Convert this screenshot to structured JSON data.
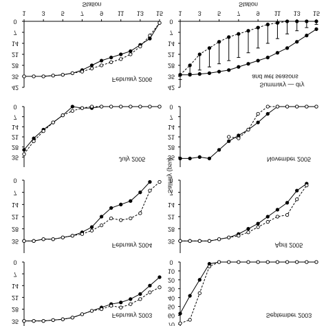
{
  "chart_data": [
    {
      "type": "line",
      "title": "February 2006",
      "xlabel": "Station",
      "x": [
        1,
        2,
        3,
        4,
        5,
        6,
        7,
        8,
        9,
        10,
        11,
        12,
        13,
        14,
        15
      ],
      "xticks": [
        1,
        3,
        5,
        7,
        9,
        11,
        13,
        15
      ],
      "ylim": [
        0,
        42
      ],
      "yticks": [
        0,
        7,
        14,
        21,
        28,
        35,
        42
      ],
      "series": [
        {
          "color": "#000000",
          "style": "solid",
          "marker": "filled",
          "values": [
            35,
            35,
            35,
            34.5,
            34,
            33,
            31,
            28,
            25,
            23,
            21,
            19,
            15,
            11,
            1
          ]
        },
        {
          "color": "#000000",
          "style": "dashed",
          "marker": "open",
          "values": [
            35,
            35,
            35,
            34.5,
            34,
            33,
            32,
            30,
            28,
            26,
            24,
            21,
            16,
            9,
            1
          ]
        }
      ]
    },
    {
      "type": "line",
      "title": "Summary — dry",
      "subtitle": "and wet seasons",
      "xlabel": "Station",
      "x": [
        1,
        2,
        3,
        4,
        5,
        6,
        7,
        8,
        9,
        10,
        11,
        12,
        13,
        14,
        15
      ],
      "xticks": [
        1,
        3,
        5,
        7,
        9,
        11,
        13,
        15
      ],
      "ylim": [
        0,
        42
      ],
      "yticks": [
        0,
        7,
        14,
        21,
        28,
        35,
        42
      ],
      "series": [
        {
          "color": "#000000",
          "style": "solid",
          "marker": "filled",
          "values": [
            34,
            34,
            33.5,
            33,
            32,
            31,
            29,
            27,
            25,
            23,
            20,
            17,
            13,
            9,
            5
          ]
        },
        {
          "color": "#000000",
          "style": "dashed",
          "marker": "filled",
          "values": [
            34,
            28,
            21,
            17,
            13,
            10,
            8,
            6,
            4,
            2,
            1,
            0,
            0,
            0,
            0
          ],
          "errors": [
            3,
            5,
            10,
            12,
            14,
            15,
            15,
            14,
            13,
            12,
            10,
            8,
            6,
            4,
            2
          ]
        }
      ]
    },
    {
      "type": "line",
      "title": "July 2005",
      "x": [
        1,
        2,
        3,
        4,
        5,
        6,
        7,
        8,
        9,
        10,
        11,
        12,
        13,
        14,
        15
      ],
      "ylim": [
        0,
        42
      ],
      "yticks": [
        0,
        7,
        14,
        21,
        28,
        35
      ],
      "series": [
        {
          "color": "#000000",
          "style": "solid",
          "marker": "filled",
          "values": [
            30,
            22,
            16,
            11,
            6,
            0,
            1,
            1,
            0,
            0,
            0,
            0,
            0,
            0,
            0
          ]
        },
        {
          "color": "#000000",
          "style": "dashed",
          "marker": "open",
          "values": [
            33,
            24,
            17,
            11,
            6,
            3,
            1,
            0,
            0,
            0,
            0,
            0,
            0,
            0,
            0
          ]
        }
      ]
    },
    {
      "type": "line",
      "title": "November 2005",
      "x": [
        1,
        2,
        3,
        4,
        5,
        6,
        7,
        8,
        9,
        10,
        11,
        12,
        13,
        14,
        15
      ],
      "ylim": [
        0,
        42
      ],
      "yticks": [
        0,
        7,
        14,
        21,
        28,
        35
      ],
      "series": [
        {
          "color": "#000000",
          "style": "solid",
          "marker": "filled",
          "values": [
            36,
            36,
            35,
            36,
            30,
            24,
            20,
            16,
            11,
            5,
            0,
            0,
            0,
            0,
            0
          ]
        },
        {
          "color": "#000000",
          "style": "dashed",
          "marker": "open",
          "values": [
            null,
            null,
            null,
            null,
            null,
            21,
            22,
            16,
            5,
            0,
            0,
            0,
            0,
            0,
            0
          ]
        }
      ]
    },
    {
      "type": "line",
      "title": "February 2004",
      "ylabel": "Salinity (psu)",
      "x": [
        1,
        2,
        3,
        4,
        5,
        6,
        7,
        8,
        9,
        10,
        11,
        12,
        13,
        14,
        15
      ],
      "ylim": [
        0,
        42
      ],
      "yticks": [
        0,
        7,
        14,
        21,
        28,
        35
      ],
      "series": [
        {
          "color": "#000000",
          "style": "solid",
          "marker": "filled",
          "values": [
            35,
            35,
            34,
            34,
            33,
            32,
            30,
            27,
            21,
            16,
            14,
            12,
            7,
            1,
            null
          ]
        },
        {
          "color": "#000000",
          "style": "dashed",
          "marker": "open",
          "values": [
            35,
            35,
            34,
            34,
            33,
            32,
            31,
            29,
            26,
            22,
            23,
            22,
            19,
            6,
            1
          ]
        }
      ]
    },
    {
      "type": "line",
      "title": "April 2005",
      "x": [
        1,
        2,
        3,
        4,
        5,
        6,
        7,
        8,
        9,
        10,
        11,
        12,
        13,
        14,
        15
      ],
      "ylim": [
        0,
        42
      ],
      "yticks": [
        0,
        7,
        14,
        21,
        28,
        35
      ],
      "series": [
        {
          "color": "#000000",
          "style": "solid",
          "marker": "filled",
          "values": [
            35,
            35,
            35,
            35,
            34,
            33,
            31,
            28,
            25,
            21,
            17,
            13,
            6,
            2,
            null
          ]
        },
        {
          "color": "#000000",
          "style": "dashed",
          "marker": "open",
          "values": [
            35,
            35,
            35,
            35,
            34,
            33,
            32,
            30,
            27,
            24,
            21,
            20,
            11,
            3,
            null
          ]
        }
      ]
    },
    {
      "type": "line",
      "title": "February 2003",
      "x": [
        1,
        2,
        3,
        4,
        5,
        6,
        7,
        8,
        9,
        10,
        11,
        12,
        13,
        14,
        15
      ],
      "ylim": [
        0,
        38
      ],
      "yticks": [
        0,
        7,
        14,
        21,
        28,
        35
      ],
      "series": [
        {
          "color": "#000000",
          "style": "solid",
          "marker": "filled",
          "values": [
            35,
            35,
            35,
            34.5,
            34,
            33,
            31,
            29,
            27,
            25,
            24,
            22,
            19,
            14,
            9
          ]
        },
        {
          "color": "#000000",
          "style": "dashed",
          "marker": "open",
          "values": [
            35,
            35,
            35,
            34.5,
            34,
            33,
            31,
            29,
            28,
            26,
            27,
            25,
            22,
            18,
            15
          ]
        }
      ]
    },
    {
      "type": "line",
      "title": "September 2003",
      "x": [
        1,
        2,
        3,
        4,
        5,
        6,
        7,
        8,
        9,
        10,
        11,
        12,
        13,
        14,
        15
      ],
      "ylim": [
        0,
        72
      ],
      "yticks": [
        0,
        10,
        20,
        30,
        40,
        50,
        60,
        70
      ],
      "series": [
        {
          "color": "#000000",
          "style": "solid",
          "marker": "filled",
          "values": [
            58,
            38,
            20,
            2,
            0,
            0,
            0,
            0,
            0,
            0,
            0,
            0,
            0,
            0,
            0
          ]
        },
        {
          "color": "#000000",
          "style": "dashed",
          "marker": "open",
          "values": [
            69,
            65,
            35,
            5,
            0,
            0,
            0,
            0,
            0,
            0,
            0,
            0,
            0,
            0,
            0
          ]
        }
      ]
    }
  ]
}
